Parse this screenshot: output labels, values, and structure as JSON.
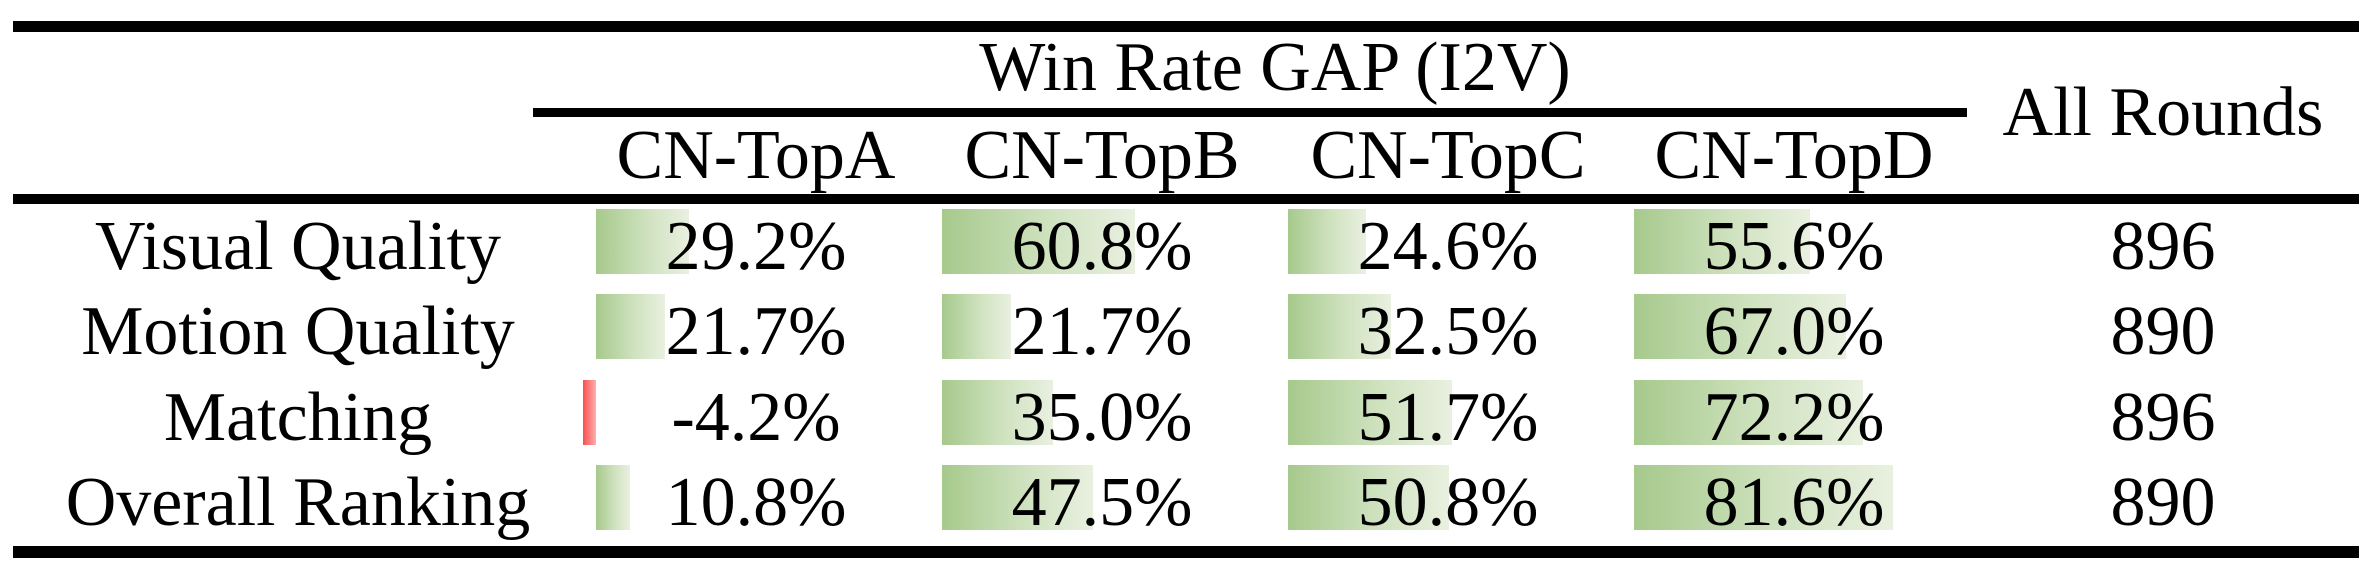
{
  "table": {
    "title": "Win Rate GAP (I2V)",
    "rounds_header": "All Rounds",
    "col_headers": [
      "CN-TopA",
      "CN-TopB",
      "CN-TopC",
      "CN-TopD"
    ],
    "rows": [
      {
        "label": "Visual Quality",
        "cells": [
          {
            "text": "29.2%",
            "value": 29.2
          },
          {
            "text": "60.8%",
            "value": 60.8
          },
          {
            "text": "24.6%",
            "value": 24.6
          },
          {
            "text": "55.6%",
            "value": 55.6
          }
        ],
        "rounds": "896"
      },
      {
        "label": "Motion Quality",
        "cells": [
          {
            "text": "21.7%",
            "value": 21.7
          },
          {
            "text": "21.7%",
            "value": 21.7
          },
          {
            "text": "32.5%",
            "value": 32.5
          },
          {
            "text": "67.0%",
            "value": 67.0
          }
        ],
        "rounds": "890"
      },
      {
        "label": "Matching",
        "cells": [
          {
            "text": "-4.2%",
            "value": -4.2
          },
          {
            "text": "35.0%",
            "value": 35.0
          },
          {
            "text": "51.7%",
            "value": 51.7
          },
          {
            "text": "72.2%",
            "value": 72.2
          }
        ],
        "rounds": "896"
      },
      {
        "label": "Overall Ranking",
        "cells": [
          {
            "text": "10.8%",
            "value": 10.8
          },
          {
            "text": "47.5%",
            "value": 47.5
          },
          {
            "text": "50.8%",
            "value": 50.8
          },
          {
            "text": "81.6%",
            "value": 81.6
          }
        ],
        "rounds": "890"
      }
    ]
  },
  "colors": {
    "bar_positive_start": "#a6c98c",
    "bar_positive_end": "#e9f0e0",
    "bar_negative_start": "#f94f4f",
    "bar_negative_end": "#ffafaf",
    "rule": "#000000",
    "text": "#000000",
    "background": "#ffffff"
  },
  "chart_data": {
    "type": "table",
    "title": "Win Rate GAP (I2V)",
    "columns": [
      "CN-TopA",
      "CN-TopB",
      "CN-TopC",
      "CN-TopD",
      "All Rounds"
    ],
    "row_labels": [
      "Visual Quality",
      "Motion Quality",
      "Matching",
      "Overall Ranking"
    ],
    "series": [
      {
        "name": "CN-TopA",
        "values": [
          29.2,
          21.7,
          -4.2,
          10.8
        ]
      },
      {
        "name": "CN-TopB",
        "values": [
          60.8,
          21.7,
          35.0,
          47.5
        ]
      },
      {
        "name": "CN-TopC",
        "values": [
          24.6,
          32.5,
          51.7,
          50.8
        ]
      },
      {
        "name": "CN-TopD",
        "values": [
          55.6,
          67.0,
          72.2,
          81.6
        ]
      }
    ],
    "all_rounds": [
      896,
      890,
      896,
      890
    ],
    "units": "percent",
    "bar_style": "horizontal in-cell data bars; green gradient for positive values, red for negative"
  }
}
